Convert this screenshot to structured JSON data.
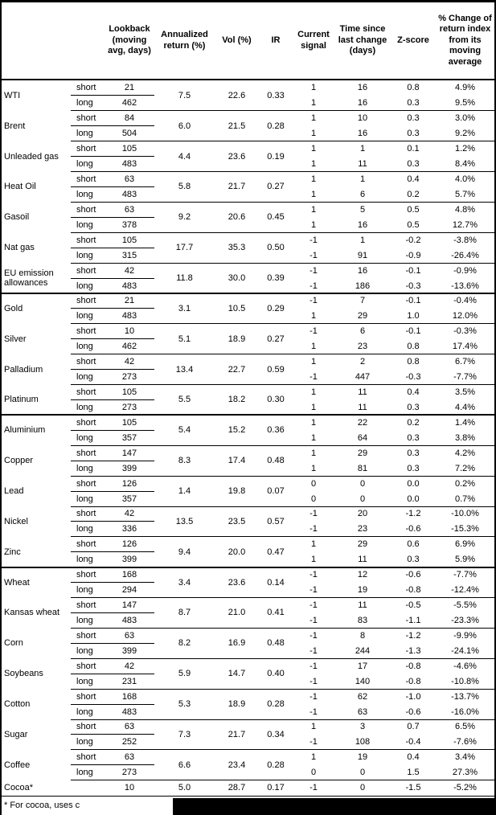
{
  "colors": {
    "text": "#000000",
    "background": "#ffffff",
    "line": "#000000"
  },
  "header": {
    "columns": [
      {
        "label": ""
      },
      {
        "label": ""
      },
      {
        "label": "Lookback\n(moving\navg, days)"
      },
      {
        "label": "Annualized\nreturn (%)"
      },
      {
        "label": "Vol (%)"
      },
      {
        "label": "IR"
      },
      {
        "label": "Current\nsignal"
      },
      {
        "label": "Time since\nlast change\n(days)"
      },
      {
        "label": "Z-score"
      },
      {
        "label": "% Change of\nreturn index\nfrom its\nmoving\naverage"
      }
    ]
  },
  "table": {
    "commodities": [
      {
        "name": "WTI",
        "sector_start": false,
        "annualized": "7.5",
        "vol": "22.6",
        "ir": "0.33",
        "rows": [
          {
            "sub": "short",
            "lookback": "21",
            "signal": "1",
            "time": "16",
            "z": "0.8",
            "pct": "4.9%"
          },
          {
            "sub": "long",
            "lookback": "462",
            "signal": "1",
            "time": "16",
            "z": "0.3",
            "pct": "9.5%"
          }
        ]
      },
      {
        "name": "Brent",
        "sector_start": false,
        "annualized": "6.0",
        "vol": "21.5",
        "ir": "0.28",
        "rows": [
          {
            "sub": "short",
            "lookback": "84",
            "signal": "1",
            "time": "10",
            "z": "0.3",
            "pct": "3.0%"
          },
          {
            "sub": "long",
            "lookback": "504",
            "signal": "1",
            "time": "16",
            "z": "0.3",
            "pct": "9.2%"
          }
        ]
      },
      {
        "name": "Unleaded gas",
        "sector_start": false,
        "annualized": "4.4",
        "vol": "23.6",
        "ir": "0.19",
        "rows": [
          {
            "sub": "short",
            "lookback": "105",
            "signal": "1",
            "time": "1",
            "z": "0.1",
            "pct": "1.2%"
          },
          {
            "sub": "long",
            "lookback": "483",
            "signal": "1",
            "time": "11",
            "z": "0.3",
            "pct": "8.4%"
          }
        ]
      },
      {
        "name": "Heat Oil",
        "sector_start": false,
        "annualized": "5.8",
        "vol": "21.7",
        "ir": "0.27",
        "rows": [
          {
            "sub": "short",
            "lookback": "63",
            "signal": "1",
            "time": "1",
            "z": "0.4",
            "pct": "4.0%"
          },
          {
            "sub": "long",
            "lookback": "483",
            "signal": "1",
            "time": "6",
            "z": "0.2",
            "pct": "5.7%"
          }
        ]
      },
      {
        "name": "Gasoil",
        "sector_start": false,
        "annualized": "9.2",
        "vol": "20.6",
        "ir": "0.45",
        "rows": [
          {
            "sub": "short",
            "lookback": "63",
            "signal": "1",
            "time": "5",
            "z": "0.5",
            "pct": "4.8%"
          },
          {
            "sub": "long",
            "lookback": "378",
            "signal": "1",
            "time": "16",
            "z": "0.5",
            "pct": "12.7%"
          }
        ]
      },
      {
        "name": "Nat gas",
        "sector_start": false,
        "annualized": "17.7",
        "vol": "35.3",
        "ir": "0.50",
        "rows": [
          {
            "sub": "short",
            "lookback": "105",
            "signal": "-1",
            "time": "1",
            "z": "-0.2",
            "pct": "-3.8%"
          },
          {
            "sub": "long",
            "lookback": "315",
            "signal": "-1",
            "time": "91",
            "z": "-0.9",
            "pct": "-26.4%"
          }
        ]
      },
      {
        "name": "EU emission allowances",
        "sector_start": false,
        "annualized": "11.8",
        "vol": "30.0",
        "ir": "0.39",
        "rows": [
          {
            "sub": "short",
            "lookback": "42",
            "signal": "-1",
            "time": "16",
            "z": "-0.1",
            "pct": "-0.9%"
          },
          {
            "sub": "long",
            "lookback": "483",
            "signal": "-1",
            "time": "186",
            "z": "-0.3",
            "pct": "-13.6%"
          }
        ]
      },
      {
        "name": "Gold",
        "sector_start": true,
        "annualized": "3.1",
        "vol": "10.5",
        "ir": "0.29",
        "rows": [
          {
            "sub": "short",
            "lookback": "21",
            "signal": "-1",
            "time": "7",
            "z": "-0.1",
            "pct": "-0.4%"
          },
          {
            "sub": "long",
            "lookback": "483",
            "signal": "1",
            "time": "29",
            "z": "1.0",
            "pct": "12.0%"
          }
        ]
      },
      {
        "name": "Silver",
        "sector_start": false,
        "annualized": "5.1",
        "vol": "18.9",
        "ir": "0.27",
        "rows": [
          {
            "sub": "short",
            "lookback": "10",
            "signal": "-1",
            "time": "6",
            "z": "-0.1",
            "pct": "-0.3%"
          },
          {
            "sub": "long",
            "lookback": "462",
            "signal": "1",
            "time": "23",
            "z": "0.8",
            "pct": "17.4%"
          }
        ]
      },
      {
        "name": "Palladium",
        "sector_start": false,
        "annualized": "13.4",
        "vol": "22.7",
        "ir": "0.59",
        "rows": [
          {
            "sub": "short",
            "lookback": "42",
            "signal": "1",
            "time": "2",
            "z": "0.8",
            "pct": "6.7%"
          },
          {
            "sub": "long",
            "lookback": "273",
            "signal": "-1",
            "time": "447",
            "z": "-0.3",
            "pct": "-7.7%"
          }
        ]
      },
      {
        "name": "Platinum",
        "sector_start": false,
        "annualized": "5.5",
        "vol": "18.2",
        "ir": "0.30",
        "rows": [
          {
            "sub": "short",
            "lookback": "105",
            "signal": "1",
            "time": "11",
            "z": "0.4",
            "pct": "3.5%"
          },
          {
            "sub": "long",
            "lookback": "273",
            "signal": "1",
            "time": "11",
            "z": "0.3",
            "pct": "4.4%"
          }
        ]
      },
      {
        "name": "Aluminium",
        "sector_start": true,
        "annualized": "5.4",
        "vol": "15.2",
        "ir": "0.36",
        "rows": [
          {
            "sub": "short",
            "lookback": "105",
            "signal": "1",
            "time": "22",
            "z": "0.2",
            "pct": "1.4%"
          },
          {
            "sub": "long",
            "lookback": "357",
            "signal": "1",
            "time": "64",
            "z": "0.3",
            "pct": "3.8%"
          }
        ]
      },
      {
        "name": "Copper",
        "sector_start": false,
        "annualized": "8.3",
        "vol": "17.4",
        "ir": "0.48",
        "rows": [
          {
            "sub": "short",
            "lookback": "147",
            "signal": "1",
            "time": "29",
            "z": "0.3",
            "pct": "4.2%"
          },
          {
            "sub": "long",
            "lookback": "399",
            "signal": "1",
            "time": "81",
            "z": "0.3",
            "pct": "7.2%"
          }
        ]
      },
      {
        "name": "Lead",
        "sector_start": false,
        "annualized": "1.4",
        "vol": "19.8",
        "ir": "0.07",
        "rows": [
          {
            "sub": "short",
            "lookback": "126",
            "signal": "0",
            "time": "0",
            "z": "0.0",
            "pct": "0.2%"
          },
          {
            "sub": "long",
            "lookback": "357",
            "signal": "0",
            "time": "0",
            "z": "0.0",
            "pct": "0.7%"
          }
        ]
      },
      {
        "name": "Nickel",
        "sector_start": false,
        "annualized": "13.5",
        "vol": "23.5",
        "ir": "0.57",
        "rows": [
          {
            "sub": "short",
            "lookback": "42",
            "signal": "-1",
            "time": "20",
            "z": "-1.2",
            "pct": "-10.0%"
          },
          {
            "sub": "long",
            "lookback": "336",
            "signal": "-1",
            "time": "23",
            "z": "-0.6",
            "pct": "-15.3%"
          }
        ]
      },
      {
        "name": "Zinc",
        "sector_start": false,
        "annualized": "9.4",
        "vol": "20.0",
        "ir": "0.47",
        "rows": [
          {
            "sub": "short",
            "lookback": "126",
            "signal": "1",
            "time": "29",
            "z": "0.6",
            "pct": "6.9%"
          },
          {
            "sub": "long",
            "lookback": "399",
            "signal": "1",
            "time": "11",
            "z": "0.3",
            "pct": "5.9%"
          }
        ]
      },
      {
        "name": "Wheat",
        "sector_start": true,
        "annualized": "3.4",
        "vol": "23.6",
        "ir": "0.14",
        "rows": [
          {
            "sub": "short",
            "lookback": "168",
            "signal": "-1",
            "time": "12",
            "z": "-0.6",
            "pct": "-7.7%"
          },
          {
            "sub": "long",
            "lookback": "294",
            "signal": "-1",
            "time": "19",
            "z": "-0.8",
            "pct": "-12.4%"
          }
        ]
      },
      {
        "name": "Kansas wheat",
        "sector_start": false,
        "annualized": "8.7",
        "vol": "21.0",
        "ir": "0.41",
        "rows": [
          {
            "sub": "short",
            "lookback": "147",
            "signal": "-1",
            "time": "11",
            "z": "-0.5",
            "pct": "-5.5%"
          },
          {
            "sub": "long",
            "lookback": "483",
            "signal": "-1",
            "time": "83",
            "z": "-1.1",
            "pct": "-23.3%"
          }
        ]
      },
      {
        "name": "Corn",
        "sector_start": false,
        "annualized": "8.2",
        "vol": "16.9",
        "ir": "0.48",
        "rows": [
          {
            "sub": "short",
            "lookback": "63",
            "signal": "-1",
            "time": "8",
            "z": "-1.2",
            "pct": "-9.9%"
          },
          {
            "sub": "long",
            "lookback": "399",
            "signal": "-1",
            "time": "244",
            "z": "-1.3",
            "pct": "-24.1%"
          }
        ]
      },
      {
        "name": "Soybeans",
        "sector_start": false,
        "annualized": "5.9",
        "vol": "14.7",
        "ir": "0.40",
        "rows": [
          {
            "sub": "short",
            "lookback": "42",
            "signal": "-1",
            "time": "17",
            "z": "-0.8",
            "pct": "-4.6%"
          },
          {
            "sub": "long",
            "lookback": "231",
            "signal": "-1",
            "time": "140",
            "z": "-0.8",
            "pct": "-10.8%"
          }
        ]
      },
      {
        "name": "Cotton",
        "sector_start": false,
        "annualized": "5.3",
        "vol": "18.9",
        "ir": "0.28",
        "rows": [
          {
            "sub": "short",
            "lookback": "168",
            "signal": "-1",
            "time": "62",
            "z": "-1.0",
            "pct": "-13.7%"
          },
          {
            "sub": "long",
            "lookback": "483",
            "signal": "-1",
            "time": "63",
            "z": "-0.6",
            "pct": "-16.0%"
          }
        ]
      },
      {
        "name": "Sugar",
        "sector_start": false,
        "annualized": "7.3",
        "vol": "21.7",
        "ir": "0.34",
        "rows": [
          {
            "sub": "short",
            "lookback": "63",
            "signal": "1",
            "time": "3",
            "z": "0.7",
            "pct": "6.5%"
          },
          {
            "sub": "long",
            "lookback": "252",
            "signal": "-1",
            "time": "108",
            "z": "-0.4",
            "pct": "-7.6%"
          }
        ]
      },
      {
        "name": "Coffee",
        "sector_start": false,
        "annualized": "6.6",
        "vol": "23.4",
        "ir": "0.28",
        "rows": [
          {
            "sub": "short",
            "lookback": "63",
            "signal": "1",
            "time": "19",
            "z": "0.4",
            "pct": "3.4%"
          },
          {
            "sub": "long",
            "lookback": "273",
            "signal": "0",
            "time": "0",
            "z": "1.5",
            "pct": "27.3%"
          }
        ]
      },
      {
        "name": "Cocoa*",
        "sector_start": false,
        "annualized": "5.0",
        "vol": "28.7",
        "ir": "0.17",
        "rows": [
          {
            "sub": "",
            "lookback": "10",
            "signal": "-1",
            "time": "0",
            "z": "-1.5",
            "pct": "-5.2%"
          }
        ]
      }
    ]
  },
  "footnote": {
    "text": "* For cocoa, uses c"
  }
}
